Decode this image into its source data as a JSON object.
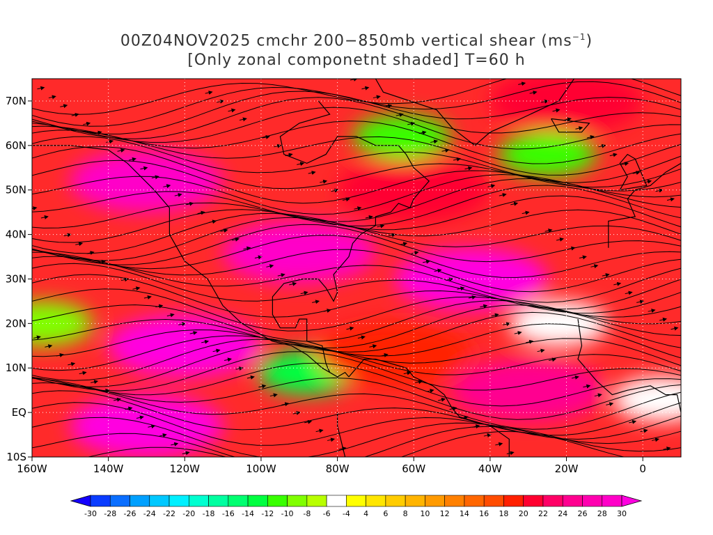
{
  "title": {
    "line1_prefix": "00Z04NOV2025 cmchr 200−850mb vertical shear (ms",
    "line1_sup": "−1",
    "line1_suffix": ")",
    "line2": "[Only zonal componetnt shaded] T=60 h"
  },
  "chart_data": {
    "type": "heatmap",
    "x_ticks": [
      "160W",
      "140W",
      "120W",
      "100W",
      "80W",
      "60W",
      "40W",
      "20W",
      "0"
    ],
    "y_ticks": [
      "70N",
      "60N",
      "50N",
      "40N",
      "30N",
      "20N",
      "10N",
      "EQ",
      "10S"
    ],
    "colorbar": {
      "levels": [
        "-30",
        "-28",
        "-26",
        "-24",
        "-22",
        "-20",
        "-18",
        "-16",
        "-14",
        "-12",
        "-10",
        "-8",
        "-6",
        "-4",
        "4",
        "6",
        "8",
        "10",
        "12",
        "14",
        "16",
        "18",
        "20",
        "22",
        "24",
        "26",
        "28",
        "30"
      ],
      "colors": [
        "#1400ff",
        "#0a3cff",
        "#0a6eff",
        "#00a0ff",
        "#00c8ff",
        "#00f0ff",
        "#00ffd0",
        "#00ffa0",
        "#00ff70",
        "#00ff40",
        "#38ff00",
        "#80ff00",
        "#b8ff00",
        "#ffffff",
        "#ffff00",
        "#ffe600",
        "#ffcc00",
        "#ffb400",
        "#ff9a00",
        "#ff8000",
        "#ff6600",
        "#ff4c00",
        "#ff2000",
        "#ff0030",
        "#ff0066",
        "#ff0090",
        "#ff00b0",
        "#ff00c8",
        "#ff00e0"
      ]
    },
    "shading_regions": [
      {
        "lat": 62,
        "lon": -63,
        "value": -12
      },
      {
        "lat": 58,
        "lon": -25,
        "value": -12
      },
      {
        "lat": 9,
        "lon": -88,
        "value": -14
      },
      {
        "lat": 20,
        "lon": -157,
        "value": -10
      },
      {
        "lat": 20,
        "lon": -22,
        "value": -6
      },
      {
        "lat": 3,
        "lon": 5,
        "value": -6
      },
      {
        "lat": 52,
        "lon": -130,
        "value": 28
      },
      {
        "lat": 36,
        "lon": -90,
        "value": 28
      },
      {
        "lat": 30,
        "lon": -45,
        "value": 30
      },
      {
        "lat": 15,
        "lon": -120,
        "value": 30
      },
      {
        "lat": -3,
        "lon": -130,
        "value": 30
      },
      {
        "lat": 5,
        "lon": -30,
        "value": 24
      },
      {
        "lat": 13,
        "lon": -65,
        "value": 18
      },
      {
        "lat": 50,
        "lon": -60,
        "value": 20
      },
      {
        "lat": 70,
        "lon": -20,
        "value": 20
      }
    ],
    "colors": {
      "grid": "#ffffff",
      "coast": "#000000",
      "streamline": "#000000",
      "contour": "#7a00a0"
    }
  }
}
